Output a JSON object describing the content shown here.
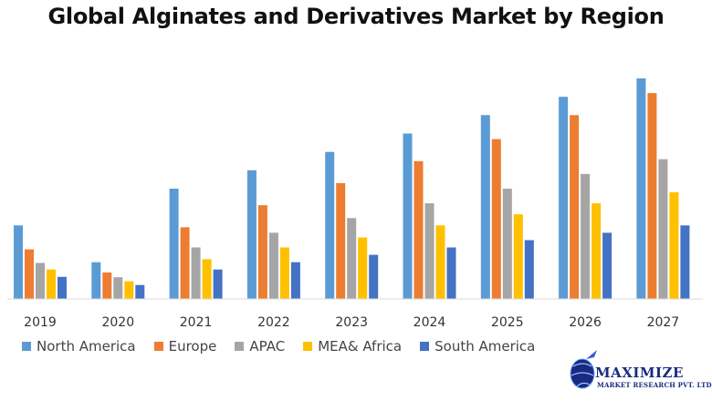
{
  "chart_data": {
    "type": "bar",
    "title": "Global Alginates and Derivatives Market by Region",
    "categories": [
      "2019",
      "2020",
      "2021",
      "2022",
      "2023",
      "2024",
      "2025",
      "2026",
      "2027"
    ],
    "series": [
      {
        "name": "North America",
        "color": "#5B9BD5",
        "values": [
          20,
          10,
          30,
          35,
          40,
          45,
          50,
          55,
          60
        ]
      },
      {
        "name": "Europe",
        "color": "#ED7D31",
        "values": [
          13.5,
          7.2,
          19.5,
          25.5,
          31.5,
          37.5,
          43.5,
          50,
          56
        ]
      },
      {
        "name": "APAC",
        "color": "#A5A5A5",
        "values": [
          9.8,
          5.9,
          14,
          18,
          22,
          26,
          30,
          34,
          38
        ]
      },
      {
        "name": "MEA& Africa",
        "color": "#FFC000",
        "values": [
          8,
          4.8,
          10.8,
          14,
          16.7,
          20,
          23,
          26,
          29
        ]
      },
      {
        "name": "South America",
        "color": "#4472C4",
        "values": [
          6,
          3.8,
          8,
          10,
          12,
          14,
          16,
          18,
          20
        ]
      }
    ],
    "ylim": [
      0,
      60
    ],
    "grid": false,
    "legend_position": "bottom"
  },
  "logo": {
    "name": "MAXIMIZE",
    "subtitle": "MARKET RESEARCH PVT. LTD."
  }
}
